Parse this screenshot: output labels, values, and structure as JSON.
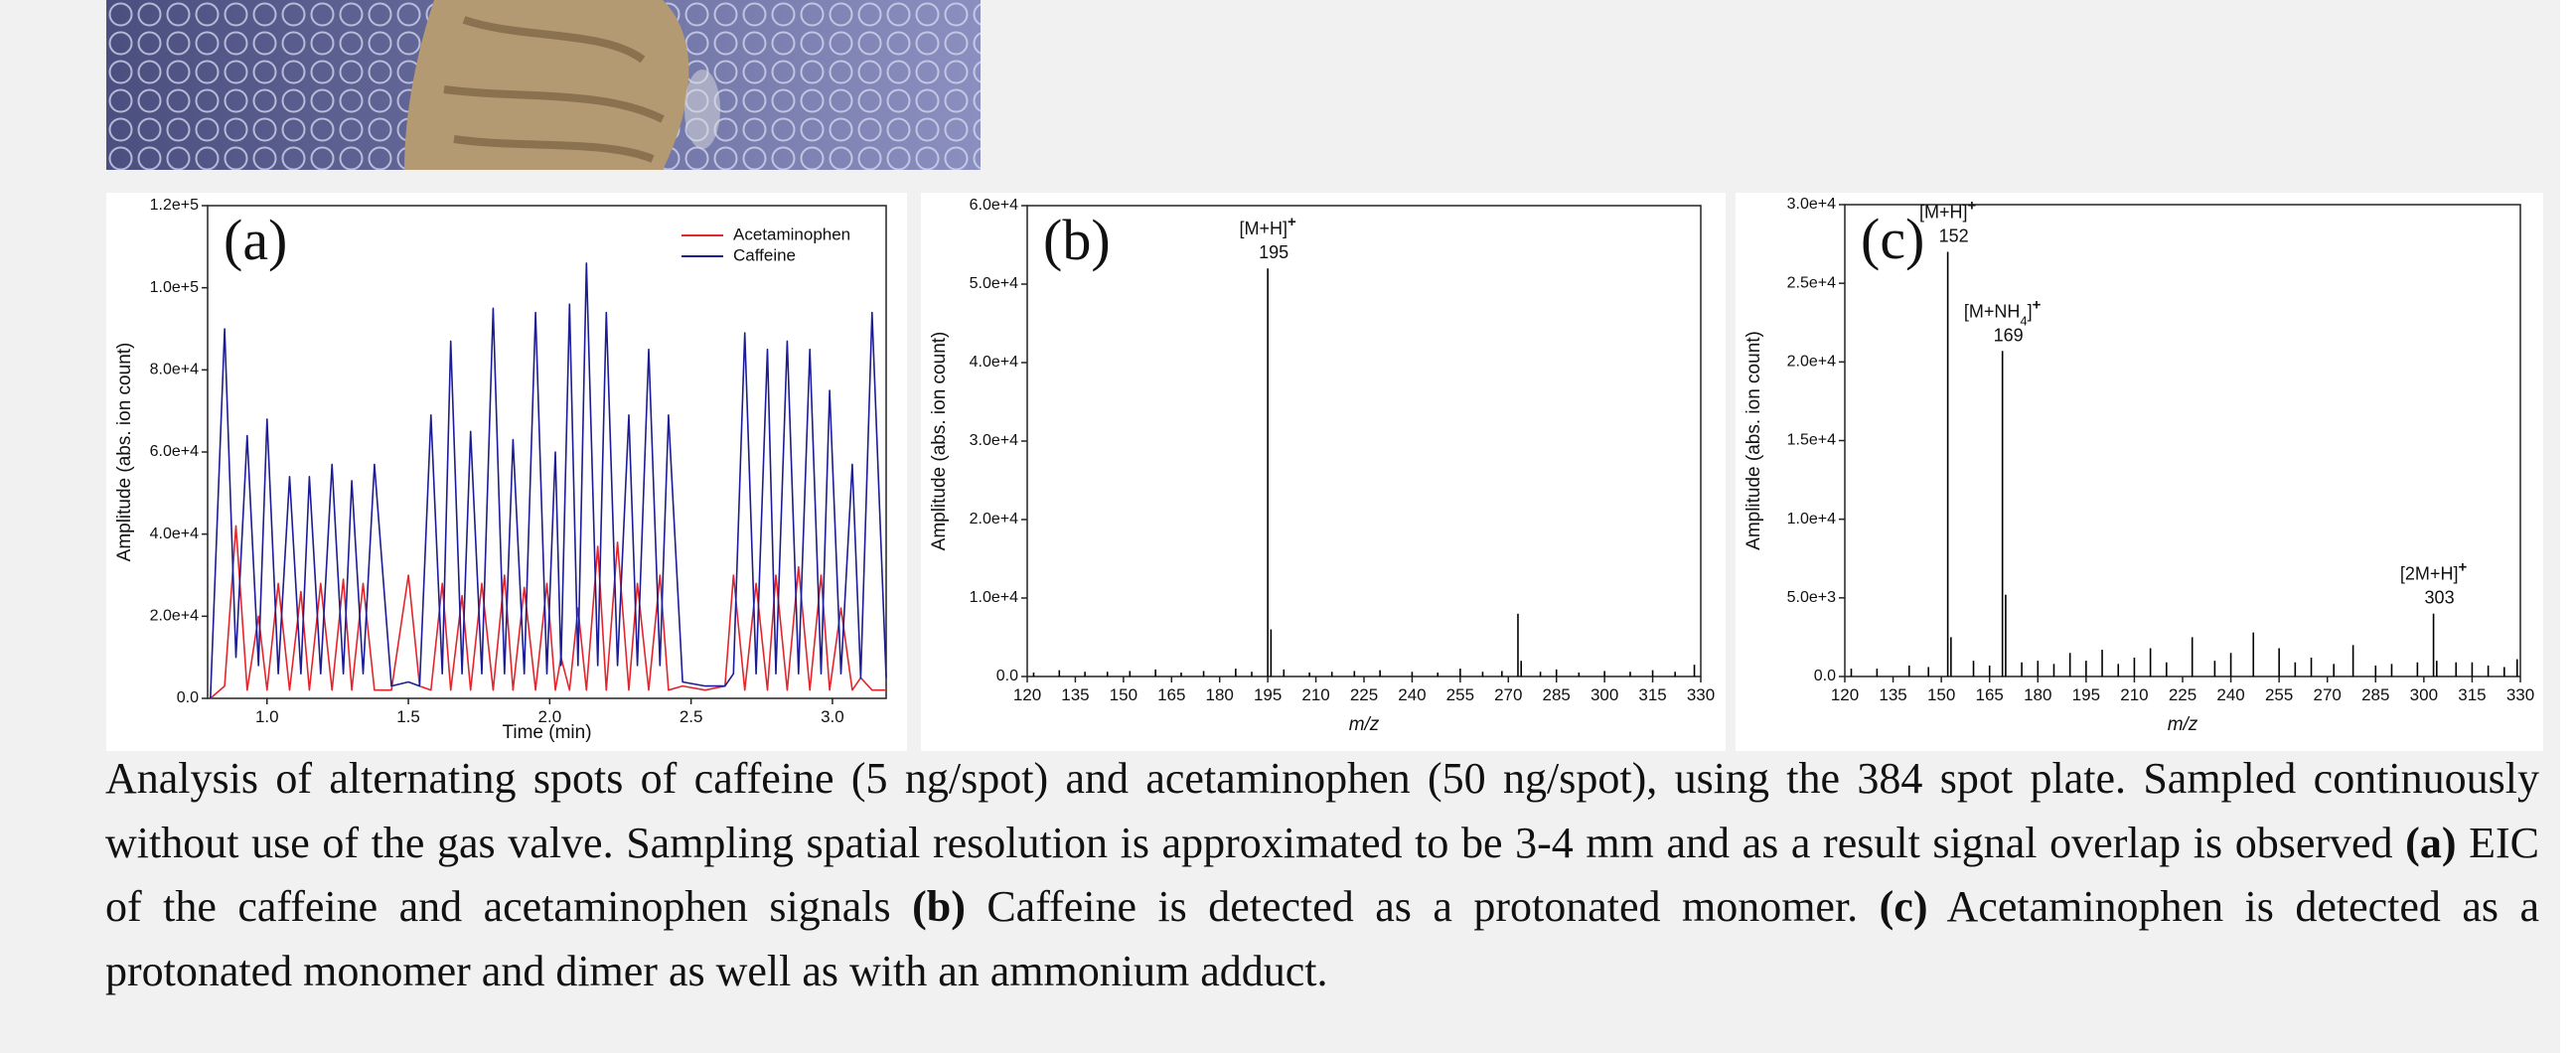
{
  "chart_data": [
    {
      "type": "line",
      "panel": "(a)",
      "x": [
        0.8,
        0.85,
        0.89,
        0.93,
        0.97,
        1.0,
        1.04,
        1.08,
        1.12,
        1.15,
        1.19,
        1.23,
        1.27,
        1.3,
        1.34,
        1.38,
        1.44,
        1.5,
        1.54,
        1.58,
        1.62,
        1.65,
        1.69,
        1.72,
        1.76,
        1.8,
        1.84,
        1.87,
        1.91,
        1.95,
        1.99,
        2.02,
        2.04,
        2.07,
        2.1,
        2.13,
        2.17,
        2.2,
        2.24,
        2.28,
        2.31,
        2.35,
        2.39,
        2.42,
        2.47,
        2.55,
        2.62,
        2.65,
        2.69,
        2.73,
        2.77,
        2.8,
        2.84,
        2.88,
        2.92,
        2.96,
        2.99,
        3.03,
        3.07,
        3.1,
        3.14,
        3.19
      ],
      "series": [
        {
          "name": "Acetaminophen",
          "color": "#e3262c",
          "values": [
            0,
            3000,
            42000,
            2000,
            20000,
            2000,
            28000,
            2000,
            26000,
            2000,
            28000,
            2000,
            29000,
            2000,
            28000,
            2000,
            2000,
            30000,
            3000,
            2000,
            28000,
            2000,
            25000,
            2000,
            28000,
            2000,
            30000,
            2000,
            27000,
            2000,
            28000,
            2000,
            10000,
            2000,
            22000,
            2000,
            37000,
            2000,
            38000,
            2000,
            28000,
            2000,
            30000,
            2000,
            3000,
            2000,
            3000,
            30000,
            2000,
            28000,
            2000,
            30000,
            2000,
            32000,
            2000,
            30000,
            2000,
            22000,
            2000,
            5000,
            2000,
            2000
          ]
        },
        {
          "name": "Caffeine",
          "color": "#1c1c96",
          "values": [
            0,
            90000,
            10000,
            64000,
            8000,
            68000,
            6000,
            54000,
            6000,
            54000,
            6000,
            57000,
            6000,
            53000,
            6000,
            57000,
            3000,
            4000,
            3000,
            69000,
            6000,
            87000,
            6000,
            65000,
            6000,
            95000,
            6000,
            63000,
            6000,
            94000,
            6000,
            60000,
            8000,
            96000,
            8000,
            106000,
            8000,
            94000,
            8000,
            69000,
            8000,
            85000,
            8000,
            69000,
            4000,
            3000,
            3000,
            6000,
            89000,
            6000,
            85000,
            6000,
            87000,
            6000,
            85000,
            6000,
            75000,
            6000,
            57000,
            5000,
            94000,
            5000
          ]
        }
      ],
      "xlim": [
        0.79,
        3.19
      ],
      "ylim": [
        0,
        120000
      ],
      "xticks": [
        {
          "value": 1,
          "label": "1.0"
        },
        1.5,
        {
          "value": 2,
          "label": "2.0"
        },
        2.5,
        {
          "value": 3,
          "label": "3.0"
        }
      ],
      "yticks": [
        {
          "value": 0,
          "label": "0.0"
        },
        {
          "value": 20000,
          "label": "2.0e+4"
        },
        {
          "value": 40000,
          "label": "4.0e+4"
        },
        {
          "value": 60000,
          "label": "6.0e+4"
        },
        {
          "value": 80000,
          "label": "8.0e+4"
        },
        {
          "value": 100000,
          "label": "1.0e+5"
        },
        {
          "value": 120000,
          "label": "1.2e+5"
        }
      ],
      "xlabel": "Time (min)",
      "ylabel": "Amplitude (abs. ion count)",
      "legend": "upper right"
    },
    {
      "type": "spectrum",
      "panel": "(b)",
      "color": "#000000",
      "x": [
        122,
        130,
        138,
        145,
        152,
        160,
        168,
        175,
        185,
        190,
        195,
        196,
        200,
        208,
        215,
        222,
        230,
        240,
        248,
        255,
        262,
        268,
        273,
        274,
        280,
        285,
        292,
        300,
        308,
        315,
        322,
        328
      ],
      "values": [
        500,
        800,
        600,
        600,
        700,
        900,
        500,
        700,
        1000,
        600,
        52000,
        6000,
        900,
        500,
        600,
        700,
        800,
        600,
        500,
        1000,
        600,
        700,
        8000,
        2000,
        600,
        900,
        500,
        700,
        600,
        800,
        600,
        1500
      ],
      "annotations": [
        {
          "text": [
            "[M+H]",
            "+"
          ],
          "styles": [
            "normal",
            "sup"
          ],
          "label": "195"
        }
      ],
      "xlim": [
        120,
        330
      ],
      "ylim": [
        0,
        60000
      ],
      "xticks": [
        120,
        135,
        150,
        165,
        180,
        195,
        210,
        225,
        240,
        255,
        270,
        285,
        300,
        315,
        330
      ],
      "yticks": [
        {
          "value": 0,
          "label": "0.0"
        },
        {
          "value": 10000,
          "label": "1.0e+4"
        },
        {
          "value": 20000,
          "label": "2.0e+4"
        },
        {
          "value": 30000,
          "label": "3.0e+4"
        },
        {
          "value": 40000,
          "label": "4.0e+4"
        },
        {
          "value": 50000,
          "label": "5.0e+4"
        },
        {
          "value": 60000,
          "label": "6.0e+4"
        }
      ],
      "xlabel": "m/z",
      "ylabel": "Amplitude (abs. ion count)"
    },
    {
      "type": "spectrum",
      "panel": "(c)",
      "color": "#000000",
      "x": [
        122,
        130,
        140,
        146,
        152,
        153,
        160,
        165,
        169,
        170,
        175,
        180,
        185,
        190,
        195,
        200,
        205,
        210,
        215,
        220,
        228,
        235,
        240,
        247,
        255,
        260,
        265,
        272,
        278,
        285,
        290,
        298,
        303,
        304,
        310,
        315,
        320,
        325,
        329
      ],
      "values": [
        500,
        500,
        700,
        600,
        27000,
        2500,
        1000,
        700,
        20700,
        5200,
        900,
        1000,
        800,
        1500,
        1000,
        1700,
        800,
        1200,
        1800,
        900,
        2500,
        1000,
        1500,
        2800,
        1800,
        900,
        1200,
        800,
        2000,
        700,
        800,
        900,
        4000,
        1000,
        900,
        900,
        700,
        600,
        1100
      ],
      "annotations": [
        {
          "text": [
            "[M+H]",
            "+"
          ],
          "styles": [
            "normal",
            "sup"
          ],
          "label": "152"
        },
        {
          "text": [
            "[M+NH",
            "4",
            "]",
            "+"
          ],
          "styles": [
            "normal",
            "sub",
            "normal",
            "sup"
          ],
          "label": "169"
        },
        {
          "text": [
            "[2M+H]",
            "+"
          ],
          "styles": [
            "normal",
            "sup"
          ],
          "label": "303"
        }
      ],
      "xlim": [
        120,
        330
      ],
      "ylim": [
        0,
        30000
      ],
      "xticks": [
        120,
        135,
        150,
        165,
        180,
        195,
        210,
        225,
        240,
        255,
        270,
        285,
        300,
        315,
        330
      ],
      "yticks": [
        {
          "value": 0,
          "label": "0.0"
        },
        {
          "value": 5000,
          "label": "5.0e+3"
        },
        {
          "value": 10000,
          "label": "1.0e+4"
        },
        {
          "value": 15000,
          "label": "1.5e+4"
        },
        {
          "value": 20000,
          "label": "2.0e+4"
        },
        {
          "value": 25000,
          "label": "2.5e+4"
        },
        {
          "value": 30000,
          "label": "3.0e+4"
        }
      ],
      "xlabel": "m/z",
      "ylabel": "Amplitude (abs. ion count)"
    }
  ],
  "caption": [
    {
      "text": "Analysis of alternating spots of caffeine (5 ng/spot) and acetaminophen (50 ng/spot), using the 384 spot plate. Sampled continuously without use of the gas valve. Sampling spatial resolution is approximated to be 3-4 mm and as a result signal overlap is observed ",
      "bold": false
    },
    {
      "text": "(a)",
      "bold": true
    },
    {
      "text": " EIC of the caffeine and acetaminophen signals ",
      "bold": false
    },
    {
      "text": "(b)",
      "bold": true
    },
    {
      "text": " Caffeine is detected as a protonated monomer. ",
      "bold": false
    },
    {
      "text": "(c)",
      "bold": true
    },
    {
      "text": " Acetaminophen is detected as a protonated monomer and dimer as well as with an ammonium adduct.",
      "bold": false
    }
  ]
}
